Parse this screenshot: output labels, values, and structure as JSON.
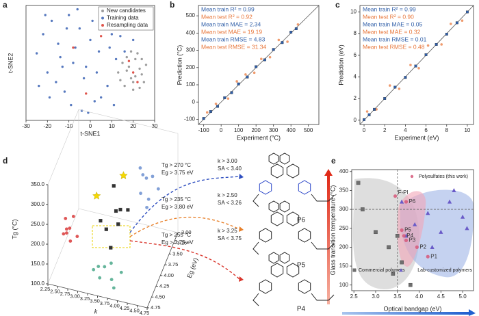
{
  "panel_labels": [
    "a",
    "b",
    "c",
    "d",
    "e"
  ],
  "chart_data": [
    {
      "type": "scatter",
      "xlabel": "t-SNE1",
      "ylabel": "t-SNE2",
      "xlim": [
        -30,
        30
      ],
      "xticks": [
        -30,
        -20,
        -10,
        0,
        10,
        20,
        30
      ],
      "ylim": [
        -30,
        30
      ],
      "legend": "upper right",
      "series": [
        {
          "name": "New candidates",
          "color": "#8c8c8c",
          "marker": "circle",
          "x": [
            13,
            15,
            17,
            19,
            21,
            23,
            25,
            16,
            18,
            20,
            22,
            24,
            14,
            19,
            23,
            26,
            21,
            17,
            20,
            24
          ],
          "y": [
            -5,
            0,
            3,
            -8,
            2,
            -3,
            -10,
            -12,
            -2,
            -14,
            5,
            -6,
            -9,
            6,
            -13,
            -1,
            -7,
            -4,
            -10,
            2
          ]
        },
        {
          "name": "Training data",
          "color": "#3a62b4",
          "marker": "circle",
          "x": [
            -25,
            -22,
            -20,
            -18,
            -15,
            -12,
            -10,
            -8,
            -5,
            -3,
            0,
            2,
            4,
            6,
            8,
            10,
            12,
            -24,
            -19,
            -14,
            -9,
            -6,
            -2,
            1,
            5,
            9,
            14,
            18,
            -21,
            -16,
            -11,
            -7,
            -4,
            3,
            7,
            11,
            16,
            20,
            -13,
            -1
          ],
          "y": [
            5,
            15,
            -5,
            22,
            10,
            -15,
            25,
            0,
            18,
            -8,
            12,
            -20,
            6,
            20,
            -12,
            15,
            2,
            -12,
            -18,
            3,
            -22,
            28,
            -2,
            22,
            -18,
            8,
            14,
            20,
            25,
            -10,
            18,
            8,
            -25,
            -5,
            24,
            -22,
            6,
            12,
            -2,
            -26
          ]
        },
        {
          "name": "Resampling data",
          "color": "#d9362c",
          "marker": "circle",
          "x": [
            -8,
            5,
            20,
            22,
            18,
            -2
          ],
          "y": [
            8,
            14,
            -5,
            -10,
            1,
            -16
          ]
        }
      ]
    },
    {
      "type": "scatter",
      "xlabel": "Experiment (°C)",
      "ylabel": "Prediction (°C)",
      "xlim": [
        -130,
        560
      ],
      "xticks": [
        -100,
        0,
        100,
        200,
        300,
        400,
        500
      ],
      "ylim": [
        -130,
        560
      ],
      "yticks": [
        -100,
        0,
        100,
        200,
        300,
        400,
        500
      ],
      "diagonal": true,
      "annotations": [
        {
          "text": "Mean train R² = 0.99",
          "color": "#2f5ea8"
        },
        {
          "text": "Mean test R² = 0.92",
          "color": "#e8763a"
        },
        {
          "text": "Mean train MAE = 2.34",
          "color": "#2f5ea8"
        },
        {
          "text": "Mean test MAE = 19.19",
          "color": "#e8763a"
        },
        {
          "text": "Mean train RMSE = 4.83",
          "color": "#2f5ea8"
        },
        {
          "text": "Mean test RMSE = 31.34",
          "color": "#e8763a"
        }
      ],
      "series": [
        {
          "color": "#ec8a55",
          "marker": "circle",
          "x": [
            -80,
            -30,
            40,
            90,
            140,
            190,
            230,
            280,
            330,
            380,
            440
          ],
          "y": [
            -60,
            -10,
            20,
            120,
            160,
            170,
            250,
            260,
            360,
            350,
            450
          ]
        },
        {
          "color": "#2f5ea8",
          "marker": "square",
          "x": [
            -100,
            -60,
            -20,
            20,
            60,
            100,
            150,
            200,
            250,
            300,
            350,
            400,
            430
          ],
          "y": [
            -95,
            -55,
            -25,
            25,
            55,
            105,
            145,
            205,
            245,
            305,
            345,
            405,
            425
          ]
        }
      ]
    },
    {
      "type": "scatter",
      "xlabel": "Experiment (eV)",
      "ylabel": "Prediction (eV)",
      "xlim": [
        -0.4,
        10.6
      ],
      "xticks": [
        0,
        2,
        4,
        6,
        8,
        10
      ],
      "ylim": [
        -0.4,
        10.6
      ],
      "yticks": [
        0,
        2,
        4,
        6,
        8,
        10
      ],
      "diagonal": true,
      "annotations": [
        {
          "text": "Mean train R² = 0.99",
          "color": "#2f5ea8"
        },
        {
          "text": "Mean test R² = 0.90",
          "color": "#e8763a"
        },
        {
          "text": "Mean train MAE = 0.05",
          "color": "#2f5ea8"
        },
        {
          "text": "Mean test MAE = 0.32",
          "color": "#e8763a"
        },
        {
          "text": "Mean train RMSE = 0.01",
          "color": "#2f5ea8"
        },
        {
          "text": "Mean test RMSE = 0.48",
          "color": "#e8763a"
        }
      ],
      "series": [
        {
          "color": "#ec8a55",
          "marker": "circle",
          "x": [
            0.3,
            1.2,
            2.5,
            3.4,
            4.5,
            5.3,
            6.2,
            7.5,
            8.4,
            9.5
          ],
          "y": [
            0.8,
            1.0,
            3.2,
            2.9,
            5.1,
            4.8,
            6.9,
            7.0,
            8.9,
            9.2
          ]
        },
        {
          "color": "#2f5ea8",
          "marker": "square",
          "x": [
            0,
            0.5,
            1,
            2,
            3,
            4,
            5,
            6,
            7,
            8,
            9,
            10
          ],
          "y": [
            0.05,
            0.5,
            1.0,
            2.0,
            3.05,
            3.95,
            5.0,
            6.05,
            7.0,
            7.95,
            9.0,
            10.0
          ]
        }
      ]
    },
    {
      "type": "scatter3d",
      "zlabel": "Tg (°C)",
      "xlabel": "k",
      "ylabel": "Eg (eV)",
      "xlim": [
        2.25,
        4.75
      ],
      "ylim": [
        3.0,
        4.75
      ],
      "zlim": [
        100,
        350
      ],
      "xticks": [
        2.25,
        {
          "value": 2.5,
          "label": "2.50"
        },
        2.75,
        {
          "value": 3,
          "label": "3.00"
        },
        3.25,
        {
          "value": 3.5,
          "label": "3.50"
        },
        3.75,
        {
          "value": 4,
          "label": "4.00"
        },
        4.25,
        {
          "value": 4.5,
          "label": "4.50"
        },
        4.75
      ],
      "yticks": [
        {
          "value": 3,
          "label": "3.00"
        },
        3.25,
        {
          "value": 3.5,
          "label": "3.50"
        },
        3.75,
        {
          "value": 4,
          "label": "4.00"
        },
        4.25,
        {
          "value": 4.5,
          "label": "4.50"
        },
        4.75
      ],
      "zticks": [
        {
          "value": 100,
          "label": "100.0"
        },
        {
          "value": 150,
          "label": "150.0"
        },
        {
          "value": 200,
          "label": "200.0"
        },
        {
          "value": 250,
          "label": "250.0"
        },
        {
          "value": 300,
          "label": "300.0"
        },
        {
          "value": 350,
          "label": "350.0"
        }
      ],
      "series": [
        {
          "color": "#d93a3a",
          "marker": "circle",
          "k": [
            2.4,
            2.5,
            2.55,
            2.6,
            2.45,
            2.7,
            2.5,
            2.65
          ],
          "Eg": [
            4.2,
            4.25,
            4.15,
            4.3,
            4.2,
            4.1,
            4.25,
            4.2
          ],
          "Tg": [
            170,
            190,
            150,
            200,
            210,
            160,
            180,
            220
          ]
        },
        {
          "color": "#4aa88a",
          "marker": "circle",
          "k": [
            3.2,
            3.4,
            3.6,
            3.8,
            3.5,
            3.3,
            3.7,
            3.9
          ],
          "Eg": [
            4.3,
            4.4,
            4.2,
            4.5,
            4.35,
            4.25,
            4.4,
            4.3
          ],
          "Tg": [
            110,
            105,
            125,
            100,
            130,
            115,
            108,
            120
          ]
        },
        {
          "color": "#6c8fd0",
          "marker": "circle",
          "k": [
            3.9,
            4.0,
            4.1,
            4.2,
            3.8,
            4.3,
            4.0,
            4.1
          ],
          "Eg": [
            3.2,
            3.1,
            3.3,
            3.2,
            3.0,
            3.1,
            3.3,
            3.2
          ],
          "Tg": [
            200,
            230,
            180,
            250,
            240,
            210,
            260,
            190
          ]
        },
        {
          "color": "#333333",
          "marker": "square",
          "k": [
            3.3,
            3.5,
            3.7,
            3.4,
            3.6,
            3.8,
            3.2,
            3.5
          ],
          "Eg": [
            3.8,
            3.7,
            3.9,
            3.6,
            3.8,
            3.7,
            3.9,
            4.0
          ],
          "Tg": [
            160,
            200,
            230,
            250,
            180,
            210,
            190,
            140
          ]
        },
        {
          "color": "#f5d800",
          "marker": "star",
          "k": [
            3.1,
            3.6
          ],
          "Eg": [
            3.9,
            3.5
          ],
          "Tg": [
            250,
            270
          ]
        }
      ],
      "conditions": [
        [
          "Tg > 270 °C",
          "Eg > 3.75 eV",
          "k > 3.00",
          "SA < 3.40"
        ],
        [
          "Tg > 235 °C",
          "Eg > 3.80 eV",
          "k > 2.50",
          "SA < 3.26"
        ],
        [
          "Tg > 255 °C",
          "Eg > 3.75 eV",
          "k > 3.25",
          "SA < 3.75"
        ]
      ],
      "candidates": [
        "P6",
        "P5",
        "P4"
      ],
      "arrow_colors": [
        "#2f4fc0",
        "#e8802a",
        "#d9362c"
      ]
    },
    {
      "type": "scatter",
      "xlabel": "Optical bandgap (eV)",
      "ylabel": "Glass transition temperature (°C)",
      "xlim": [
        2.45,
        5.25
      ],
      "xticks": [
        2.5,
        {
          "value": 3,
          "label": "3.0"
        },
        3.5,
        {
          "value": 4,
          "label": "4.0"
        },
        4.5,
        {
          "value": 5,
          "label": "5.0"
        }
      ],
      "ylim": [
        85,
        405
      ],
      "yticks": [
        100,
        150,
        200,
        250,
        300,
        350,
        400
      ],
      "ref_x": 3.5,
      "ref_y": 300,
      "legend": "annotated",
      "series": [
        {
          "name": "Commercial polymers",
          "color": "#6f6f6f",
          "marker": "square",
          "x": [
            2.6,
            2.7,
            3.0,
            3.3,
            3.5,
            3.6,
            3.4,
            3.8
          ],
          "y": [
            370,
            300,
            240,
            200,
            230,
            160,
            130,
            100
          ]
        },
        {
          "name": "Lab-customized polymers",
          "color": "#6a5bc8",
          "marker": "triangle",
          "x": [
            3.6,
            3.9,
            4.2,
            4.5,
            4.8,
            5.0,
            4.3,
            4.7,
            3.7,
            5.1
          ],
          "y": [
            320,
            260,
            290,
            240,
            350,
            280,
            200,
            320,
            230,
            250
          ]
        },
        {
          "name": "Polysulfates (this work)",
          "color": "#d6587a",
          "marker": "circle",
          "x": [
            3.45,
            3.7,
            3.6,
            3.65,
            3.7,
            3.95,
            4.2
          ],
          "y": [
            335,
            320,
            245,
            230,
            218,
            200,
            175
          ],
          "point_labels": [
            "F-PI",
            "P6",
            "P5",
            "P4",
            "P3",
            "P2",
            "P1"
          ]
        }
      ]
    }
  ]
}
